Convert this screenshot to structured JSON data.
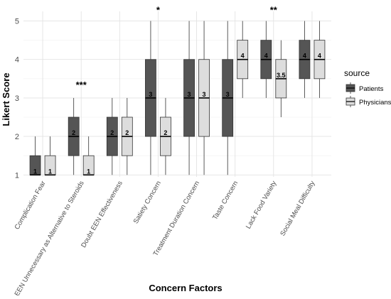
{
  "chart_data": {
    "type": "boxplot",
    "title": "",
    "xlabel": "Concern Factors",
    "ylabel": "Likert Score",
    "ylim": [
      0.95,
      5.25
    ],
    "yticks": [
      1,
      2,
      3,
      4,
      5
    ],
    "grid": true,
    "legend": {
      "title": "source",
      "position": "right"
    },
    "categories": [
      "Complication Fear",
      "EEN Unnecessary as Alternative to Steroids",
      "Doubt EEN Effectiveness",
      "Satiety Concern",
      "Treatment Duration Concern",
      "Taste Concern",
      "Lack Food Variety",
      "Social Meal Difficulty"
    ],
    "series": [
      {
        "name": "Patients",
        "color": "#555555",
        "boxes": [
          {
            "min": 1,
            "q1": 1,
            "median": 1,
            "q3": 1.5,
            "max": 2,
            "label": "1"
          },
          {
            "min": 1,
            "q1": 1.5,
            "median": 2,
            "q3": 2.5,
            "max": 3,
            "label": "2"
          },
          {
            "min": 1,
            "q1": 1.5,
            "median": 2,
            "q3": 2.5,
            "max": 3,
            "label": "2"
          },
          {
            "min": 1,
            "q1": 2,
            "median": 3,
            "q3": 4,
            "max": 5,
            "label": "3"
          },
          {
            "min": 1,
            "q1": 2,
            "median": 3,
            "q3": 4,
            "max": 5,
            "label": "3"
          },
          {
            "min": 1,
            "q1": 2,
            "median": 3,
            "q3": 4,
            "max": 5,
            "label": "3"
          },
          {
            "min": 3,
            "q1": 3.5,
            "median": 4,
            "q3": 4.5,
            "max": 5,
            "label": "4"
          },
          {
            "min": 3,
            "q1": 3.5,
            "median": 4,
            "q3": 4.5,
            "max": 5,
            "label": "4"
          }
        ]
      },
      {
        "name": "Physicians",
        "color": "#dddddd",
        "boxes": [
          {
            "min": 1,
            "q1": 1,
            "median": 1,
            "q3": 1.5,
            "max": 2,
            "label": "1"
          },
          {
            "min": 1,
            "q1": 1,
            "median": 1,
            "q3": 1.5,
            "max": 2,
            "label": "1"
          },
          {
            "min": 1,
            "q1": 1.5,
            "median": 2,
            "q3": 2.5,
            "max": 3,
            "label": "2"
          },
          {
            "min": 1,
            "q1": 1.5,
            "median": 2,
            "q3": 2.5,
            "max": 3,
            "label": "2"
          },
          {
            "min": 1,
            "q1": 2,
            "median": 3,
            "q3": 4,
            "max": 5,
            "label": "3"
          },
          {
            "min": 3,
            "q1": 3.5,
            "median": 4,
            "q3": 4.5,
            "max": 5,
            "label": "4"
          },
          {
            "min": 2.5,
            "q1": 3,
            "median": 3.5,
            "q3": 4,
            "max": 4.5,
            "label": "3.5"
          },
          {
            "min": 3,
            "q1": 3.5,
            "median": 4,
            "q3": 4.5,
            "max": 5,
            "label": "4"
          }
        ]
      }
    ],
    "annotations": [
      {
        "category_index": 1,
        "y": 3.35,
        "text": "***"
      },
      {
        "category_index": 3,
        "y": 5.3,
        "text": "*"
      },
      {
        "category_index": 6,
        "y": 5.3,
        "text": "**"
      }
    ]
  }
}
